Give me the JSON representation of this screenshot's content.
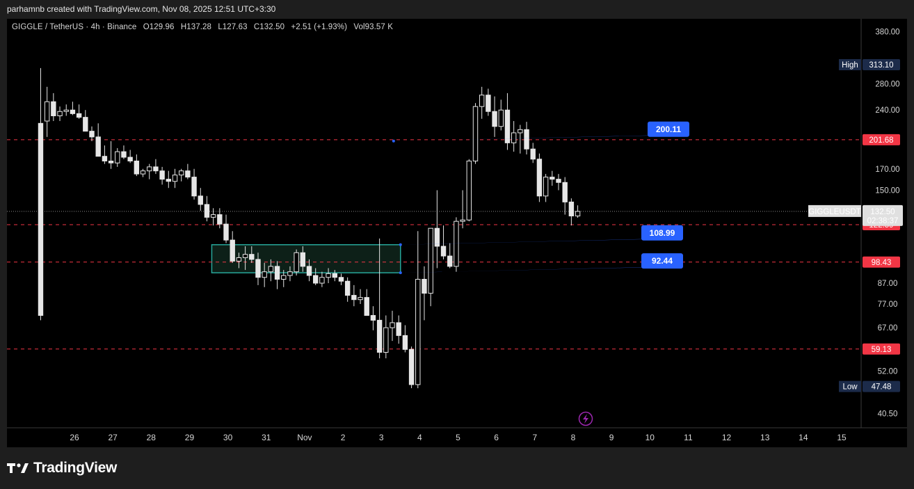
{
  "header": {
    "credit": "parhamnb created with TradingView.com, Nov 08, 2025 12:51 UTC+3:30"
  },
  "legend": {
    "symbol": "GIGGLE / TetherUS · 4h · Binance",
    "open": "O129.96",
    "high": "H137.28",
    "low": "L127.63",
    "close": "C132.50",
    "change": "+2.51 (+1.93%)",
    "volume": "Vol93.57 K"
  },
  "footer": {
    "brand": "TradingView"
  },
  "colors": {
    "background": "#000000",
    "candle": "#e6e6e6",
    "level_line": "#f23645",
    "level_tag": "#f23645",
    "callout": "#2962ff",
    "zone_border": "#26a69a",
    "zone_fill": "#0d2018",
    "high_low_tag": "#1c2b4a",
    "price_tag": "#e0e0e0"
  },
  "chart_data": {
    "type": "candlestick",
    "y_scale": "log",
    "ylim": [
      38.5,
      395
    ],
    "y_ticks": [
      "380.00",
      "313.10",
      "280.00",
      "240.00",
      "201.68",
      "170.00",
      "150.00",
      "132.50",
      "122.59",
      "98.43",
      "87.00",
      "77.00",
      "67.00",
      "59.13",
      "52.00",
      "47.48",
      "40.50"
    ],
    "y_tick_values": [
      380,
      280,
      240,
      170,
      150,
      87,
      77,
      67,
      52,
      40.5
    ],
    "y_tick_labels": [
      "380.00",
      "280.00",
      "240.00",
      "170.00",
      "150.00",
      "87.00",
      "77.00",
      "67.00",
      "52.00",
      "40.50"
    ],
    "x_tick_labels": [
      "26",
      "27",
      "28",
      "29",
      "30",
      "31",
      "Nov",
      "2",
      "3",
      "4",
      "5",
      "6",
      "7",
      "8",
      "9",
      "10",
      "11",
      "12",
      "13",
      "14",
      "15"
    ],
    "x_start": "2025-10-25",
    "candle_interval": "4h",
    "candles_ohlc": [
      [
        222,
        307,
        70,
        72
      ],
      [
        225,
        275,
        205,
        252
      ],
      [
        252,
        265,
        225,
        232
      ],
      [
        232,
        245,
        225,
        238
      ],
      [
        238,
        248,
        232,
        240
      ],
      [
        240,
        252,
        233,
        235
      ],
      [
        235,
        248,
        228,
        230
      ],
      [
        230,
        240,
        212,
        212
      ],
      [
        212,
        218,
        200,
        205
      ],
      [
        205,
        222,
        185,
        183
      ],
      [
        183,
        195,
        175,
        178
      ],
      [
        178,
        200,
        170,
        176
      ],
      [
        176,
        192,
        172,
        188
      ],
      [
        188,
        195,
        180,
        182
      ],
      [
        182,
        190,
        176,
        178
      ],
      [
        178,
        185,
        163,
        165
      ],
      [
        165,
        170,
        162,
        168
      ],
      [
        168,
        175,
        160,
        172
      ],
      [
        172,
        180,
        165,
        168
      ],
      [
        168,
        172,
        155,
        160
      ],
      [
        160,
        168,
        152,
        158
      ],
      [
        158,
        170,
        152,
        164
      ],
      [
        164,
        170,
        158,
        168
      ],
      [
        168,
        175,
        160,
        162
      ],
      [
        162,
        170,
        142,
        145
      ],
      [
        145,
        152,
        133,
        138
      ],
      [
        138,
        145,
        125,
        128
      ],
      [
        128,
        135,
        122,
        130
      ],
      [
        130,
        135,
        120,
        123
      ],
      [
        123,
        130,
        110,
        112
      ],
      [
        112,
        118,
        98,
        99
      ],
      [
        99,
        104,
        95,
        101
      ],
      [
        101,
        108,
        94,
        103
      ],
      [
        103,
        108,
        98,
        100
      ],
      [
        100,
        104,
        86,
        90
      ],
      [
        90,
        98,
        85,
        93
      ],
      [
        93,
        100,
        88,
        96
      ],
      [
        96,
        99,
        84,
        89
      ],
      [
        89,
        94,
        85,
        91
      ],
      [
        91,
        96,
        88,
        93
      ],
      [
        93,
        106,
        91,
        104
      ],
      [
        104,
        108,
        93,
        96
      ],
      [
        96,
        100,
        88,
        91
      ],
      [
        91,
        95,
        86,
        87
      ],
      [
        87,
        93,
        85,
        90
      ],
      [
        90,
        95,
        87,
        92
      ],
      [
        92,
        94,
        88,
        90
      ],
      [
        90,
        92,
        86,
        88
      ],
      [
        88,
        90,
        78,
        81
      ],
      [
        81,
        86,
        76,
        79
      ],
      [
        79,
        84,
        77,
        80
      ],
      [
        80,
        84,
        72,
        72
      ],
      [
        72,
        76,
        66,
        70
      ],
      [
        70,
        113,
        56,
        58
      ],
      [
        58,
        72,
        56,
        67
      ],
      [
        67,
        74,
        62,
        69
      ],
      [
        69,
        72,
        61,
        64
      ],
      [
        64,
        68,
        58,
        59
      ],
      [
        59,
        60,
        47,
        48
      ],
      [
        48,
        118,
        47,
        89
      ],
      [
        89,
        96,
        70,
        82
      ],
      [
        82,
        120,
        76,
        120
      ],
      [
        120,
        150,
        95,
        108
      ],
      [
        108,
        122,
        100,
        102
      ],
      [
        102,
        110,
        95,
        96
      ],
      [
        96,
        128,
        93,
        125
      ],
      [
        125,
        150,
        120,
        126
      ],
      [
        126,
        180,
        125,
        178
      ],
      [
        178,
        250,
        175,
        245
      ],
      [
        245,
        275,
        228,
        262
      ],
      [
        262,
        272,
        232,
        238
      ],
      [
        238,
        260,
        205,
        218
      ],
      [
        218,
        255,
        213,
        240
      ],
      [
        240,
        265,
        190,
        198
      ],
      [
        198,
        225,
        188,
        210
      ],
      [
        210,
        220,
        186,
        214
      ],
      [
        214,
        224,
        185,
        191
      ],
      [
        191,
        198,
        176,
        180
      ],
      [
        180,
        186,
        140,
        145
      ],
      [
        145,
        165,
        140,
        162
      ],
      [
        162,
        168,
        154,
        160
      ],
      [
        160,
        165,
        150,
        157
      ],
      [
        157,
        162,
        130,
        140
      ],
      [
        140,
        143,
        122,
        129
      ],
      [
        129,
        137.28,
        127.63,
        132.5
      ]
    ],
    "levels": [
      {
        "price": 201.68,
        "label": "201.68"
      },
      {
        "price": 122.59,
        "label": "122.59"
      },
      {
        "price": 98.43,
        "label": "98.43"
      },
      {
        "price": 59.13,
        "label": "59.13"
      }
    ],
    "zone": {
      "top": 108.99,
      "bottom": 92.44,
      "from_day": 4.58,
      "to_day": 9.5
    },
    "callouts": [
      {
        "value": 200.11,
        "label": "200.11"
      },
      {
        "value": 108.99,
        "label": "108.99"
      },
      {
        "value": 92.44,
        "label": "92.44"
      }
    ],
    "current_price": {
      "value": 132.5,
      "label": "132.50",
      "countdown": "02:38:37",
      "symbol": "GIGGLEUSDT"
    },
    "high_tag": {
      "label": "High",
      "value": "313.10",
      "price": 313.1
    },
    "low_tag": {
      "label": "Low",
      "value": "47.48",
      "price": 47.48
    }
  }
}
